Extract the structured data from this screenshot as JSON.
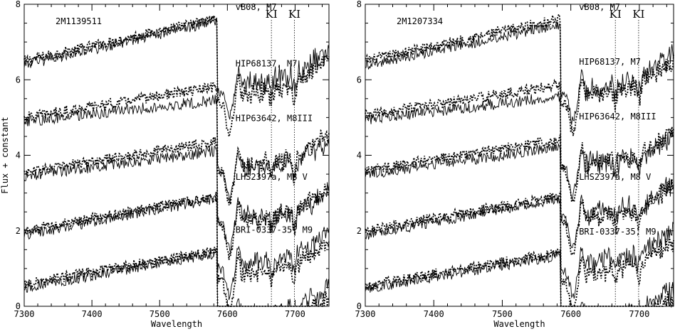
{
  "chart_data": [
    {
      "type": "line",
      "panel_label": "2M1139511",
      "xlabel": "Wavelength",
      "ylabel": "Flux + constant",
      "xlim": [
        7300,
        7750
      ],
      "ylim": [
        0,
        8
      ],
      "xticks": [
        7300,
        7400,
        7500,
        7600,
        7700
      ],
      "yticks": [
        0,
        2,
        4,
        6,
        8
      ],
      "reference_lines": [
        {
          "label": "KI",
          "x": 7665
        },
        {
          "label": "KI",
          "x": 7699
        }
      ],
      "series": [
        {
          "label": "vB08, M7",
          "offset": 6.5,
          "target_slope": 1.1,
          "template_slope": 1.15
        },
        {
          "label": "HIP68137, M7",
          "offset": 5.0,
          "target_slope": 0.8,
          "template_slope": 0.55
        },
        {
          "label": "HIP63642, M8III",
          "offset": 3.55,
          "target_slope": 0.8,
          "template_slope": 0.65
        },
        {
          "label": "LHS2397a, M8 V",
          "offset": 2.0,
          "target_slope": 0.9,
          "template_slope": 0.95
        },
        {
          "label": "BRI-0337-35, M9",
          "offset": 0.6,
          "target_slope": 0.85,
          "template_slope": 0.9
        }
      ]
    },
    {
      "type": "line",
      "panel_label": "2M1207334",
      "xlabel": "Wavelength",
      "ylabel": "",
      "xlim": [
        7300,
        7750
      ],
      "ylim": [
        0,
        8
      ],
      "xticks": [
        7300,
        7400,
        7500,
        7600,
        7700
      ],
      "yticks": [
        0,
        2,
        4,
        6,
        8
      ],
      "reference_lines": [
        {
          "label": "KI",
          "x": 7665
        },
        {
          "label": "KI",
          "x": 7699
        }
      ],
      "series": [
        {
          "label": "vB08, M7",
          "offset": 6.5,
          "target_slope": 1.1,
          "template_slope": 1.05
        },
        {
          "label": "HIP68137, M7",
          "offset": 5.05,
          "target_slope": 0.8,
          "template_slope": 0.6
        },
        {
          "label": "HIP63642, M8III",
          "offset": 3.6,
          "target_slope": 0.8,
          "template_slope": 0.7
        },
        {
          "label": "LHS2397a, M8 V",
          "offset": 2.0,
          "target_slope": 0.9,
          "template_slope": 0.95
        },
        {
          "label": "BRI-0337-35, M9",
          "offset": 0.55,
          "target_slope": 0.85,
          "template_slope": 0.9
        }
      ]
    }
  ]
}
